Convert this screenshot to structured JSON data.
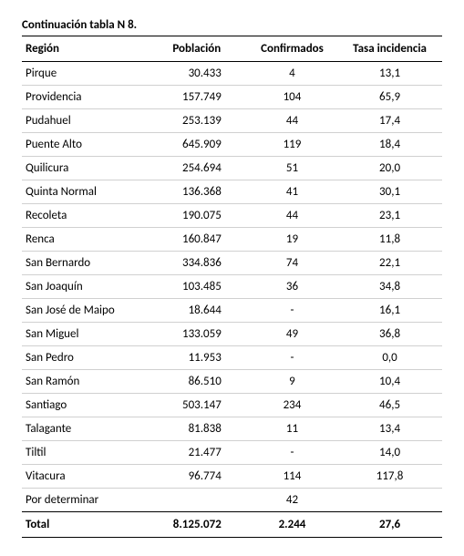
{
  "table": {
    "caption": "Continuación tabla N 8.",
    "columns": [
      "Región",
      "Población",
      "Confirmados",
      "Tasa incidencia"
    ],
    "rows": [
      {
        "region": "Pirque",
        "poblacion": "30.433",
        "confirmados": "4",
        "tasa": "13,1"
      },
      {
        "region": "Providencia",
        "poblacion": "157.749",
        "confirmados": "104",
        "tasa": "65,9"
      },
      {
        "region": "Pudahuel",
        "poblacion": "253.139",
        "confirmados": "44",
        "tasa": "17,4"
      },
      {
        "region": "Puente Alto",
        "poblacion": "645.909",
        "confirmados": "119",
        "tasa": "18,4"
      },
      {
        "region": "Quilicura",
        "poblacion": "254.694",
        "confirmados": "51",
        "tasa": "20,0"
      },
      {
        "region": "Quinta Normal",
        "poblacion": "136.368",
        "confirmados": "41",
        "tasa": "30,1"
      },
      {
        "region": "Recoleta",
        "poblacion": "190.075",
        "confirmados": "44",
        "tasa": "23,1"
      },
      {
        "region": "Renca",
        "poblacion": "160.847",
        "confirmados": "19",
        "tasa": "11,8"
      },
      {
        "region": "San Bernardo",
        "poblacion": "334.836",
        "confirmados": "74",
        "tasa": "22,1"
      },
      {
        "region": "San Joaquín",
        "poblacion": "103.485",
        "confirmados": "36",
        "tasa": "34,8"
      },
      {
        "region": "San José de Maipo",
        "poblacion": "18.644",
        "confirmados": "-",
        "tasa": "16,1"
      },
      {
        "region": "San Miguel",
        "poblacion": "133.059",
        "confirmados": "49",
        "tasa": "36,8"
      },
      {
        "region": "San Pedro",
        "poblacion": "11.953",
        "confirmados": "-",
        "tasa": "0,0"
      },
      {
        "region": "San Ramón",
        "poblacion": "86.510",
        "confirmados": "9",
        "tasa": "10,4"
      },
      {
        "region": "Santiago",
        "poblacion": "503.147",
        "confirmados": "234",
        "tasa": "46,5"
      },
      {
        "region": "Talagante",
        "poblacion": "81.838",
        "confirmados": "11",
        "tasa": "13,4"
      },
      {
        "region": "Tiltil",
        "poblacion": "21.477",
        "confirmados": "-",
        "tasa": "14,0"
      },
      {
        "region": "Vitacura",
        "poblacion": "96.774",
        "confirmados": "114",
        "tasa": "117,8"
      },
      {
        "region": "Por determinar",
        "poblacion": "",
        "confirmados": "42",
        "tasa": ""
      }
    ],
    "total": {
      "label": "Total",
      "poblacion": "8.125.072",
      "confirmados": "2.244",
      "tasa": "27,6"
    }
  }
}
